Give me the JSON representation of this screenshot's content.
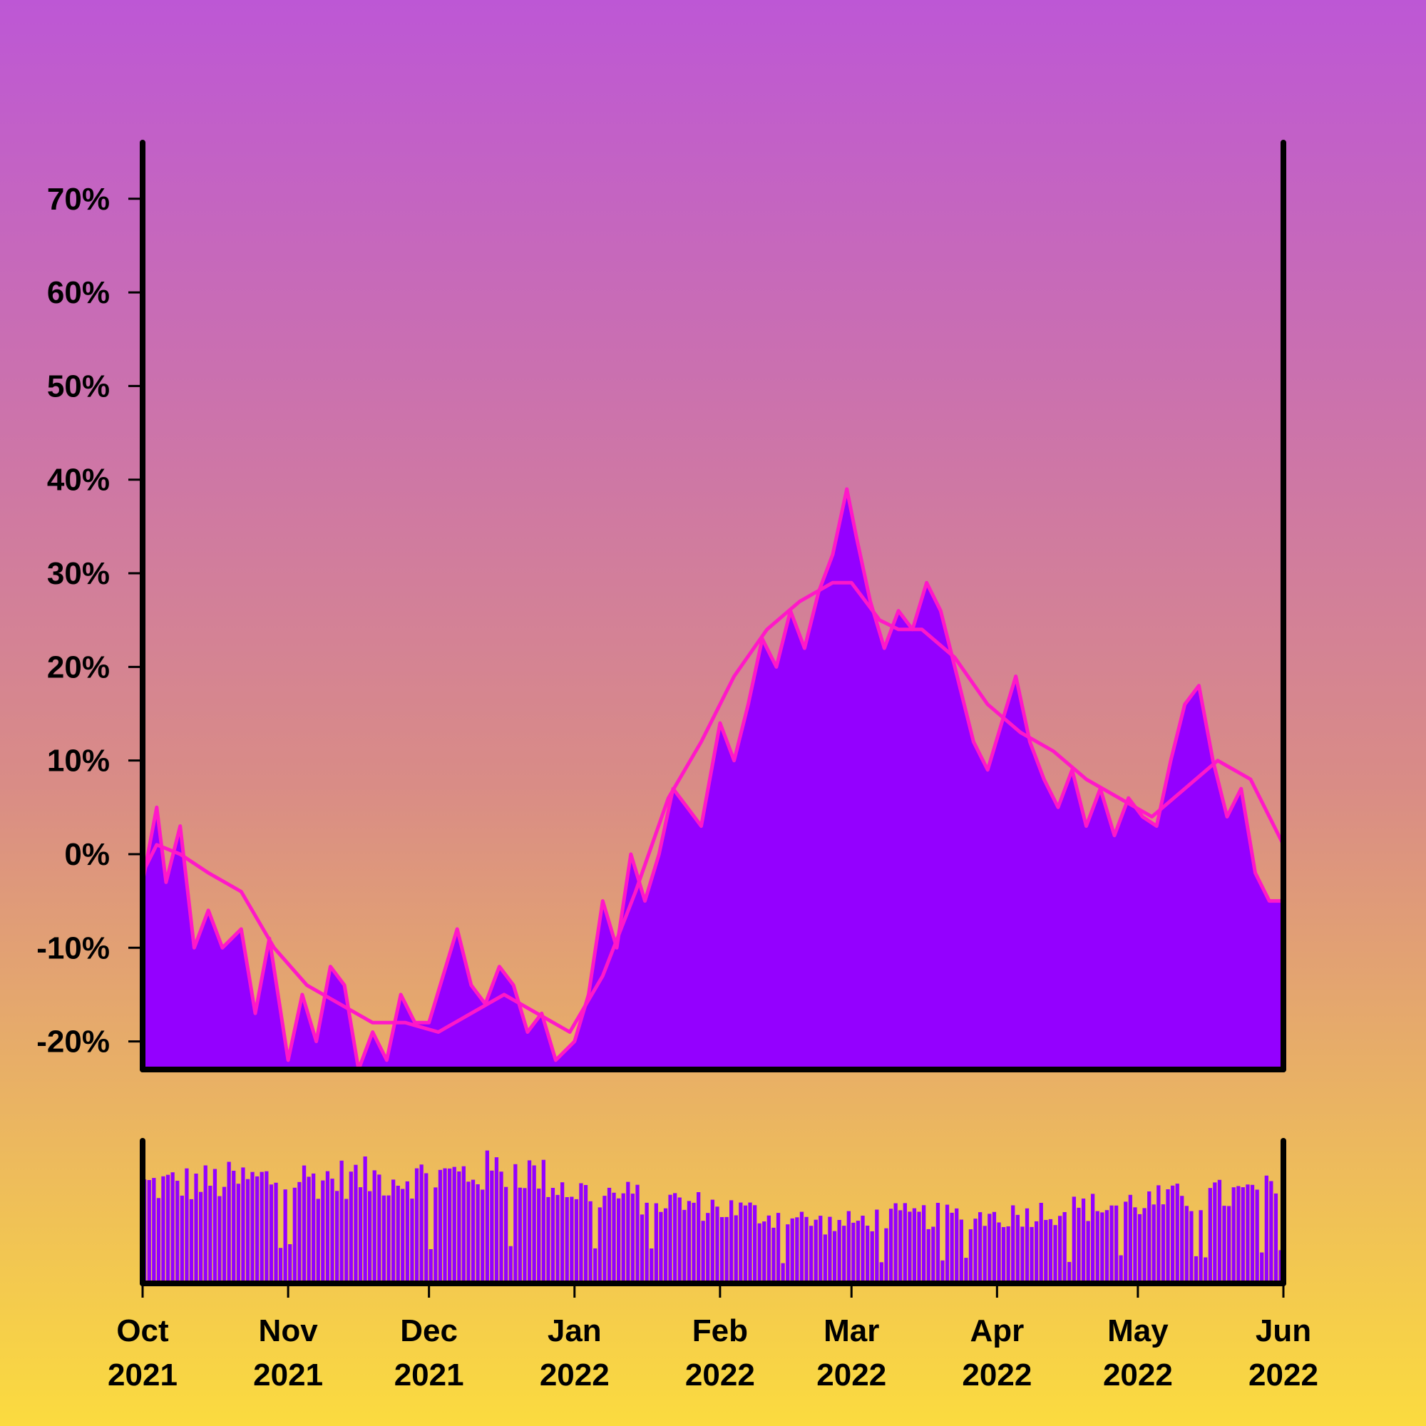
{
  "colors": {
    "area_fill": "#9400ff",
    "area_edge": "#ff18c8",
    "moving_average": "#ff18c8",
    "volume_bars": "#9400ff",
    "axis": "#000000",
    "background_top": "#bd57d5",
    "background_bottom": "#fbdb3f"
  },
  "chart_data": [
    {
      "type": "area",
      "title": "",
      "xlabel": "",
      "ylabel": "",
      "x_range": [
        "2021-10-01",
        "2022-06-01"
      ],
      "ylim": [
        -23,
        76
      ],
      "yticks": [
        -20,
        -10,
        0,
        10,
        20,
        30,
        40,
        50,
        60,
        70
      ],
      "ytick_labels": [
        "-20%",
        "-10%",
        "0%",
        "10%",
        "20%",
        "30%",
        "40%",
        "50%",
        "60%",
        "70%"
      ],
      "grid": false,
      "legend": "none",
      "series": [
        {
          "kind": "daily cumulative return (area)",
          "points": [
            [
              "2021-10-01",
              -3
            ],
            [
              "2021-10-04",
              5
            ],
            [
              "2021-10-06",
              -3
            ],
            [
              "2021-10-09",
              3
            ],
            [
              "2021-10-12",
              -10
            ],
            [
              "2021-10-15",
              -6
            ],
            [
              "2021-10-18",
              -10
            ],
            [
              "2021-10-22",
              -8
            ],
            [
              "2021-10-25",
              -17
            ],
            [
              "2021-10-28",
              -9
            ],
            [
              "2021-11-01",
              -22
            ],
            [
              "2021-11-04",
              -15
            ],
            [
              "2021-11-07",
              -20
            ],
            [
              "2021-11-10",
              -12
            ],
            [
              "2021-11-13",
              -14
            ],
            [
              "2021-11-16",
              -23
            ],
            [
              "2021-11-19",
              -19
            ],
            [
              "2021-11-22",
              -22
            ],
            [
              "2021-11-25",
              -15
            ],
            [
              "2021-11-28",
              -18
            ],
            [
              "2021-12-01",
              -18
            ],
            [
              "2021-12-04",
              -13
            ],
            [
              "2021-12-07",
              -8
            ],
            [
              "2021-12-10",
              -14
            ],
            [
              "2021-12-13",
              -16
            ],
            [
              "2021-12-16",
              -12
            ],
            [
              "2021-12-19",
              -14
            ],
            [
              "2021-12-22",
              -19
            ],
            [
              "2021-12-25",
              -17
            ],
            [
              "2021-12-28",
              -22
            ],
            [
              "2022-01-01",
              -20
            ],
            [
              "2022-01-04",
              -15
            ],
            [
              "2022-01-07",
              -5
            ],
            [
              "2022-01-10",
              -10
            ],
            [
              "2022-01-13",
              0
            ],
            [
              "2022-01-16",
              -5
            ],
            [
              "2022-01-19",
              0
            ],
            [
              "2022-01-22",
              7
            ],
            [
              "2022-01-25",
              5
            ],
            [
              "2022-01-28",
              3
            ],
            [
              "2022-02-01",
              14
            ],
            [
              "2022-02-04",
              10
            ],
            [
              "2022-02-07",
              16
            ],
            [
              "2022-02-10",
              23
            ],
            [
              "2022-02-13",
              20
            ],
            [
              "2022-02-16",
              26
            ],
            [
              "2022-02-19",
              22
            ],
            [
              "2022-02-22",
              28
            ],
            [
              "2022-02-25",
              32
            ],
            [
              "2022-02-28",
              39
            ],
            [
              "2022-03-02",
              34
            ],
            [
              "2022-03-05",
              27
            ],
            [
              "2022-03-08",
              22
            ],
            [
              "2022-03-11",
              26
            ],
            [
              "2022-03-14",
              24
            ],
            [
              "2022-03-17",
              29
            ],
            [
              "2022-03-20",
              26
            ],
            [
              "2022-03-24",
              18
            ],
            [
              "2022-03-27",
              12
            ],
            [
              "2022-03-30",
              9
            ],
            [
              "2022-04-02",
              14
            ],
            [
              "2022-04-05",
              19
            ],
            [
              "2022-04-08",
              12
            ],
            [
              "2022-04-11",
              8
            ],
            [
              "2022-04-14",
              5
            ],
            [
              "2022-04-17",
              9
            ],
            [
              "2022-04-20",
              3
            ],
            [
              "2022-04-23",
              7
            ],
            [
              "2022-04-26",
              2
            ],
            [
              "2022-04-29",
              6
            ],
            [
              "2022-05-02",
              4
            ],
            [
              "2022-05-05",
              3
            ],
            [
              "2022-05-08",
              10
            ],
            [
              "2022-05-11",
              16
            ],
            [
              "2022-05-14",
              18
            ],
            [
              "2022-05-17",
              10
            ],
            [
              "2022-05-20",
              4
            ],
            [
              "2022-05-23",
              7
            ],
            [
              "2022-05-26",
              -2
            ],
            [
              "2022-05-29",
              -5
            ],
            [
              "2022-06-01",
              -5
            ]
          ]
        },
        {
          "kind": "moving average (line)",
          "points": [
            [
              "2021-10-01",
              -2
            ],
            [
              "2021-10-04",
              1
            ],
            [
              "2021-10-09",
              0
            ],
            [
              "2021-10-15",
              -2
            ],
            [
              "2021-10-22",
              -4
            ],
            [
              "2021-10-29",
              -10
            ],
            [
              "2021-11-05",
              -14
            ],
            [
              "2021-11-12",
              -16
            ],
            [
              "2021-11-19",
              -18
            ],
            [
              "2021-11-26",
              -18
            ],
            [
              "2021-12-03",
              -19
            ],
            [
              "2021-12-10",
              -17
            ],
            [
              "2021-12-17",
              -15
            ],
            [
              "2021-12-24",
              -17
            ],
            [
              "2021-12-31",
              -19
            ],
            [
              "2022-01-07",
              -13
            ],
            [
              "2022-01-14",
              -4
            ],
            [
              "2022-01-21",
              6
            ],
            [
              "2022-01-28",
              12
            ],
            [
              "2022-02-04",
              19
            ],
            [
              "2022-02-11",
              24
            ],
            [
              "2022-02-18",
              27
            ],
            [
              "2022-02-25",
              29
            ],
            [
              "2022-03-01",
              29
            ],
            [
              "2022-03-04",
              27
            ],
            [
              "2022-03-07",
              25
            ],
            [
              "2022-03-11",
              24
            ],
            [
              "2022-03-16",
              24
            ],
            [
              "2022-03-23",
              21
            ],
            [
              "2022-03-30",
              16
            ],
            [
              "2022-04-06",
              13
            ],
            [
              "2022-04-13",
              11
            ],
            [
              "2022-04-20",
              8
            ],
            [
              "2022-04-27",
              6
            ],
            [
              "2022-05-04",
              4
            ],
            [
              "2022-05-11",
              7
            ],
            [
              "2022-05-18",
              10
            ],
            [
              "2022-05-25",
              8
            ],
            [
              "2022-06-01",
              1
            ]
          ]
        }
      ]
    },
    {
      "type": "bar",
      "title": "",
      "x_range": [
        "2021-10-01",
        "2022-06-01"
      ],
      "xtick_labels": [
        {
          "month": "Oct",
          "year": "2021"
        },
        {
          "month": "Nov",
          "year": "2021"
        },
        {
          "month": "Dec",
          "year": "2021"
        },
        {
          "month": "Jan",
          "year": "2022"
        },
        {
          "month": "Feb",
          "year": "2022"
        },
        {
          "month": "Mar",
          "year": "2022"
        },
        {
          "month": "Apr",
          "year": "2022"
        },
        {
          "month": "May",
          "year": "2022"
        },
        {
          "month": "Jun",
          "year": "2022"
        }
      ],
      "xtick_dates": [
        "2021-10-01",
        "2021-11-01",
        "2021-12-01",
        "2022-01-01",
        "2022-02-01",
        "2022-03-01",
        "2022-04-01",
        "2022-05-01",
        "2022-06-01"
      ],
      "ylim": [
        0,
        1
      ],
      "volume_profile": [
        [
          "2021-10-01",
          0.7
        ],
        [
          "2021-11-01",
          0.75
        ],
        [
          "2021-12-01",
          0.76
        ],
        [
          "2021-12-20",
          0.82
        ],
        [
          "2022-01-01",
          0.66
        ],
        [
          "2022-02-01",
          0.54
        ],
        [
          "2022-02-25",
          0.42
        ],
        [
          "2022-03-10",
          0.48
        ],
        [
          "2022-04-01",
          0.48
        ],
        [
          "2022-05-01",
          0.58
        ],
        [
          "2022-06-01",
          0.66
        ]
      ],
      "legend": "none"
    }
  ]
}
